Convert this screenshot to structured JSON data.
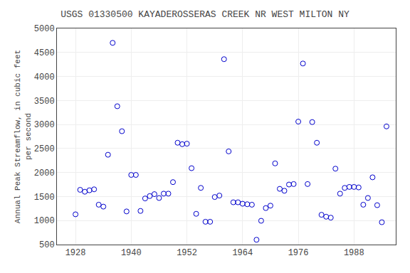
{
  "chart_data": {
    "type": "scatter",
    "title": "USGS 01330500 KAYADEROSSERAS CREEK NR WEST MILTON NY",
    "ylabel": "Annual Peak Streamflow, in cubic feet\nper second",
    "x": [
      1928,
      1929,
      1930,
      1931,
      1932,
      1933,
      1934,
      1935,
      1936,
      1937,
      1938,
      1939,
      1940,
      1941,
      1942,
      1943,
      1944,
      1945,
      1946,
      1947,
      1948,
      1949,
      1950,
      1951,
      1952,
      1953,
      1954,
      1955,
      1956,
      1957,
      1958,
      1959,
      1960,
      1961,
      1962,
      1963,
      1964,
      1965,
      1966,
      1967,
      1968,
      1969,
      1970,
      1971,
      1972,
      1973,
      1974,
      1975,
      1976,
      1977,
      1978,
      1979,
      1980,
      1981,
      1982,
      1983,
      1984,
      1985,
      1986,
      1987,
      1988,
      1989,
      1990,
      1991,
      1992,
      1993,
      1994,
      1995
    ],
    "values": [
      1130,
      1640,
      1600,
      1630,
      1650,
      1330,
      1290,
      2370,
      4700,
      3380,
      2860,
      1190,
      1950,
      1950,
      1200,
      1460,
      1510,
      1550,
      1470,
      1560,
      1560,
      1800,
      2620,
      2590,
      2600,
      2090,
      1140,
      1680,
      975,
      975,
      1490,
      1520,
      4360,
      2440,
      1380,
      1380,
      1350,
      1340,
      1330,
      600,
      995,
      1260,
      1310,
      2190,
      1660,
      1620,
      1750,
      1760,
      3060,
      4270,
      1760,
      3050,
      2620,
      1120,
      1080,
      1060,
      2080,
      1560,
      1680,
      1700,
      1700,
      1690,
      1330,
      1470,
      1900,
      1320,
      965,
      2960
    ],
    "color": "#0000cc",
    "marker": "circle-open",
    "xlim": [
      1924,
      1997
    ],
    "ylim": [
      500,
      5000
    ],
    "xticks": [
      1928,
      1940,
      1952,
      1964,
      1976,
      1988
    ],
    "yticks": [
      500,
      1000,
      1500,
      2000,
      2500,
      3000,
      3500,
      4000,
      4500,
      5000
    ],
    "grid": true
  }
}
